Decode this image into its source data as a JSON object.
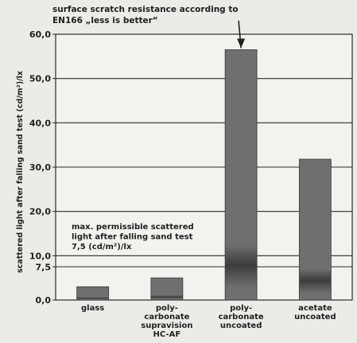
{
  "chart_data": {
    "type": "bar",
    "title_line1": "surface scratch resistance according to",
    "title_line2": "EN166 „less is better“",
    "ylabel": "scattered light after falling sand test (cd/m²)/lx",
    "ylim": [
      0,
      60
    ],
    "yticks": [
      {
        "value": 0,
        "label": "0,0"
      },
      {
        "value": 7.5,
        "label": "7,5"
      },
      {
        "value": 10,
        "label": "10,0"
      },
      {
        "value": 20,
        "label": "20,0"
      },
      {
        "value": 30,
        "label": "30,0"
      },
      {
        "value": 40,
        "label": "40,0"
      },
      {
        "value": 50,
        "label": "50,0"
      },
      {
        "value": 60,
        "label": "60,0"
      }
    ],
    "categories": [
      {
        "lines": [
          "glass"
        ]
      },
      {
        "lines": [
          "poly-",
          "carbonate",
          "supravision",
          "HC-AF"
        ]
      },
      {
        "lines": [
          "poly-",
          "carbonate",
          "uncoated"
        ]
      },
      {
        "lines": [
          "acetate",
          "uncoated"
        ]
      }
    ],
    "values": [
      3.0,
      5.0,
      56.5,
      31.8
    ],
    "threshold": {
      "value": 7.5,
      "label_lines": [
        "max. permissible scattered",
        "light after falling sand test",
        "7,5 (cd/m²)/lx"
      ]
    },
    "grid": true,
    "colors": {
      "bar": "#6f6f6f",
      "bar_dark": "#3c3c3c",
      "grid": "#2a2a2a",
      "text": "#1f1f1f"
    }
  }
}
